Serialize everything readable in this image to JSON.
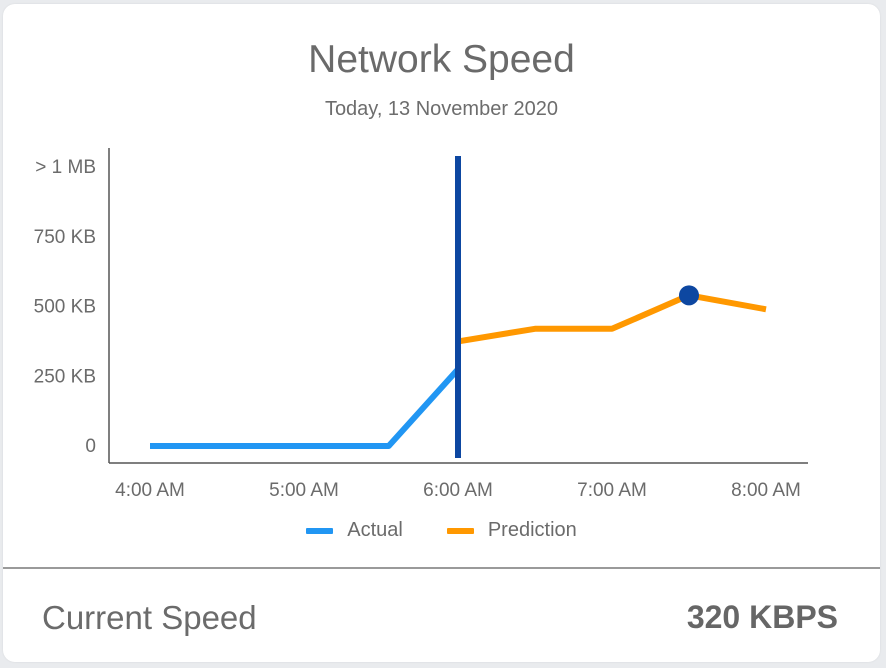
{
  "chart_data": {
    "type": "line",
    "title": "Network Speed",
    "subtitle": "Today, 13 November 2020",
    "x_ticks": [
      "4:00 AM",
      "5:00 AM",
      "6:00 AM",
      "7:00 AM",
      "8:00 AM"
    ],
    "y_ticks": [
      "0",
      "250 KB",
      "500 KB",
      "750 KB",
      "> 1 MB"
    ],
    "y_tick_values": [
      0,
      250,
      500,
      750,
      1000
    ],
    "x_range_hours": [
      4.0,
      8.0
    ],
    "y_range_kb": [
      0,
      1000
    ],
    "current_time_marker_hours": 6.0,
    "highlighted_point": {
      "series": "Prediction",
      "x_hours": 7.5,
      "y_kb": 540
    },
    "series": [
      {
        "name": "Actual",
        "color": "#2196f3",
        "points": [
          [
            4.0,
            0
          ],
          [
            5.55,
            0
          ],
          [
            6.0,
            275
          ]
        ]
      },
      {
        "name": "Prediction",
        "color": "#ff9800",
        "points": [
          [
            6.0,
            375
          ],
          [
            6.5,
            420
          ],
          [
            7.0,
            420
          ],
          [
            7.5,
            540
          ],
          [
            8.0,
            490
          ]
        ]
      }
    ],
    "marker_color": "#0d47a1",
    "legend_position": "bottom"
  },
  "footer": {
    "label": "Current Speed",
    "value": "320 KBPS"
  }
}
